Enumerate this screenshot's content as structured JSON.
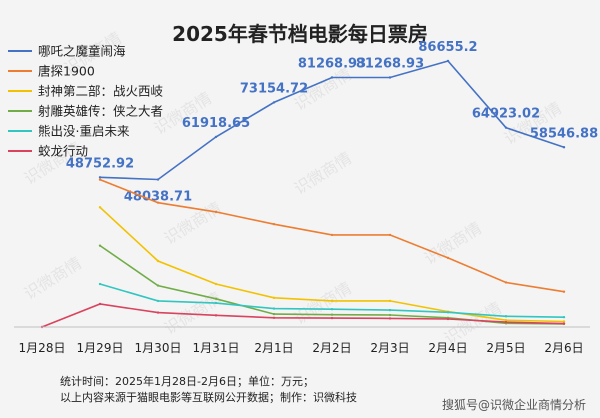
{
  "chart_data": {
    "type": "line",
    "title": "2025年春节档电影每日票房",
    "categories": [
      "1月28日",
      "1月29日",
      "1月30日",
      "1月31日",
      "2月1日",
      "2月2日",
      "2月3日",
      "2月4日",
      "2月5日",
      "2月6日"
    ],
    "xlabel": "",
    "ylabel": "",
    "ylim": [
      0,
      100000
    ],
    "grid": false,
    "legend_position": "top-left",
    "series": [
      {
        "name": "哪吒之魔童闹海",
        "color": "#4472c4",
        "values": [
          null,
          48752.92,
          48038.71,
          61918.65,
          73154.72,
          81268.93,
          81268.93,
          86655.2,
          64923.02,
          58546.88
        ],
        "labels": [
          "",
          "48752.92",
          "48038.71",
          "61918.65",
          "73154.72",
          "81268.93",
          "81268.93",
          "86655.2",
          "64923.02",
          "58546.88"
        ]
      },
      {
        "name": "唐探1900",
        "color": "#ed7d31",
        "values": [
          null,
          48000,
          40500,
          37500,
          33500,
          30000,
          30000,
          22500,
          14500,
          11500
        ]
      },
      {
        "name": "封神第二部：战火西岐",
        "color": "#f2c200",
        "values": [
          null,
          39000,
          21500,
          14000,
          9500,
          8500,
          8500,
          5000,
          2200,
          1800
        ]
      },
      {
        "name": "射雕英雄传：侠之大者",
        "color": "#70ad47",
        "values": [
          null,
          26500,
          13500,
          9200,
          4200,
          4000,
          3900,
          3000,
          1200,
          1000
        ]
      },
      {
        "name": "熊出没·重启未来",
        "color": "#31c6c0",
        "values": [
          null,
          14000,
          8500,
          7800,
          6000,
          5800,
          5500,
          4800,
          3500,
          3200
        ]
      },
      {
        "name": "蛟龙行动",
        "color": "#d9435e",
        "values": [
          0,
          7500,
          4700,
          3800,
          3000,
          2900,
          2800,
          2600,
          1600,
          1100
        ]
      }
    ]
  },
  "footer": {
    "line1": "统计时间：2025年1月28日-2月6日；单位：万元；",
    "line2": "以上内容来源于猫眼电影等互联网公开数据；制作：识微科技",
    "attribution": "搜狐号@识微企业商情分析"
  },
  "watermark": {
    "text": "识微商情"
  }
}
